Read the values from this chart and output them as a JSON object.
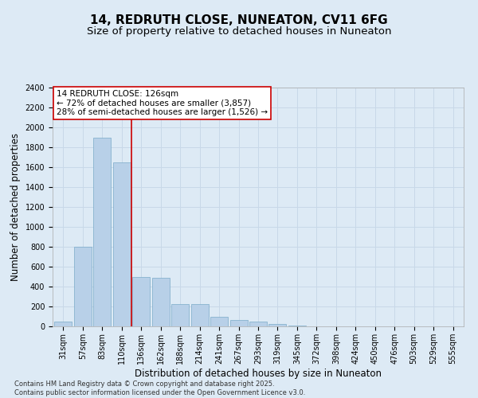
{
  "title": "14, REDRUTH CLOSE, NUNEATON, CV11 6FG",
  "subtitle": "Size of property relative to detached houses in Nuneaton",
  "xlabel": "Distribution of detached houses by size in Nuneaton",
  "ylabel": "Number of detached properties",
  "categories": [
    "31sqm",
    "57sqm",
    "83sqm",
    "110sqm",
    "136sqm",
    "162sqm",
    "188sqm",
    "214sqm",
    "241sqm",
    "267sqm",
    "293sqm",
    "319sqm",
    "345sqm",
    "372sqm",
    "398sqm",
    "424sqm",
    "450sqm",
    "476sqm",
    "503sqm",
    "529sqm",
    "555sqm"
  ],
  "values": [
    50,
    800,
    1900,
    1650,
    500,
    490,
    225,
    225,
    100,
    65,
    50,
    25,
    8,
    4,
    2,
    1,
    1,
    0,
    0,
    0,
    0
  ],
  "bar_color": "#b8d0e8",
  "bar_edge_color": "#7aaac8",
  "grid_color": "#c8d8e8",
  "background_color": "#ddeaf5",
  "vline_color": "#cc0000",
  "annotation_text": "14 REDRUTH CLOSE: 126sqm\n← 72% of detached houses are smaller (3,857)\n28% of semi-detached houses are larger (1,526) →",
  "annotation_box_color": "white",
  "annotation_box_edgecolor": "#cc0000",
  "ylim": [
    0,
    2400
  ],
  "yticks": [
    0,
    200,
    400,
    600,
    800,
    1000,
    1200,
    1400,
    1600,
    1800,
    2000,
    2200,
    2400
  ],
  "footnote": "Contains HM Land Registry data © Crown copyright and database right 2025.\nContains public sector information licensed under the Open Government Licence v3.0.",
  "title_fontsize": 11,
  "subtitle_fontsize": 9.5,
  "axis_label_fontsize": 8.5,
  "tick_fontsize": 7,
  "annotation_fontsize": 7.5,
  "footnote_fontsize": 6
}
